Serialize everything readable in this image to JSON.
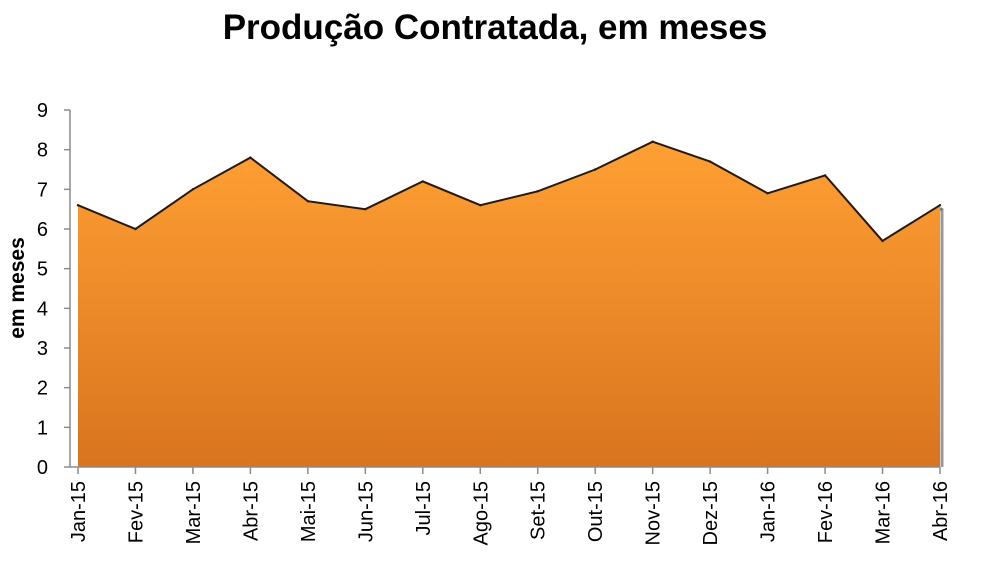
{
  "chart_data": {
    "type": "area",
    "title": "Produção Contratada, em meses",
    "xlabel": "",
    "ylabel": "em meses",
    "ylim": [
      0,
      9
    ],
    "yticks": [
      "0",
      "1",
      "2",
      "3",
      "4",
      "5",
      "6",
      "7",
      "8",
      "9"
    ],
    "categories": [
      "Jan-15",
      "Fev-15",
      "Mar-15",
      "Abr-15",
      "Mai-15",
      "Jun-15",
      "Jul-15",
      "Ago-15",
      "Set-15",
      "Out-15",
      "Nov-15",
      "Dez-15",
      "Jan-16",
      "Fev-16",
      "Mar-16",
      "Abr-16"
    ],
    "values": [
      6.6,
      6.0,
      7.0,
      7.8,
      6.7,
      6.5,
      7.2,
      6.6,
      6.95,
      7.5,
      8.2,
      7.7,
      6.9,
      7.35,
      5.7,
      6.6
    ],
    "grid": false,
    "legend": "none",
    "colors": {
      "fill_top": "#ffa033",
      "fill_bottom": "#d9741f",
      "line": "#2a1808"
    }
  }
}
